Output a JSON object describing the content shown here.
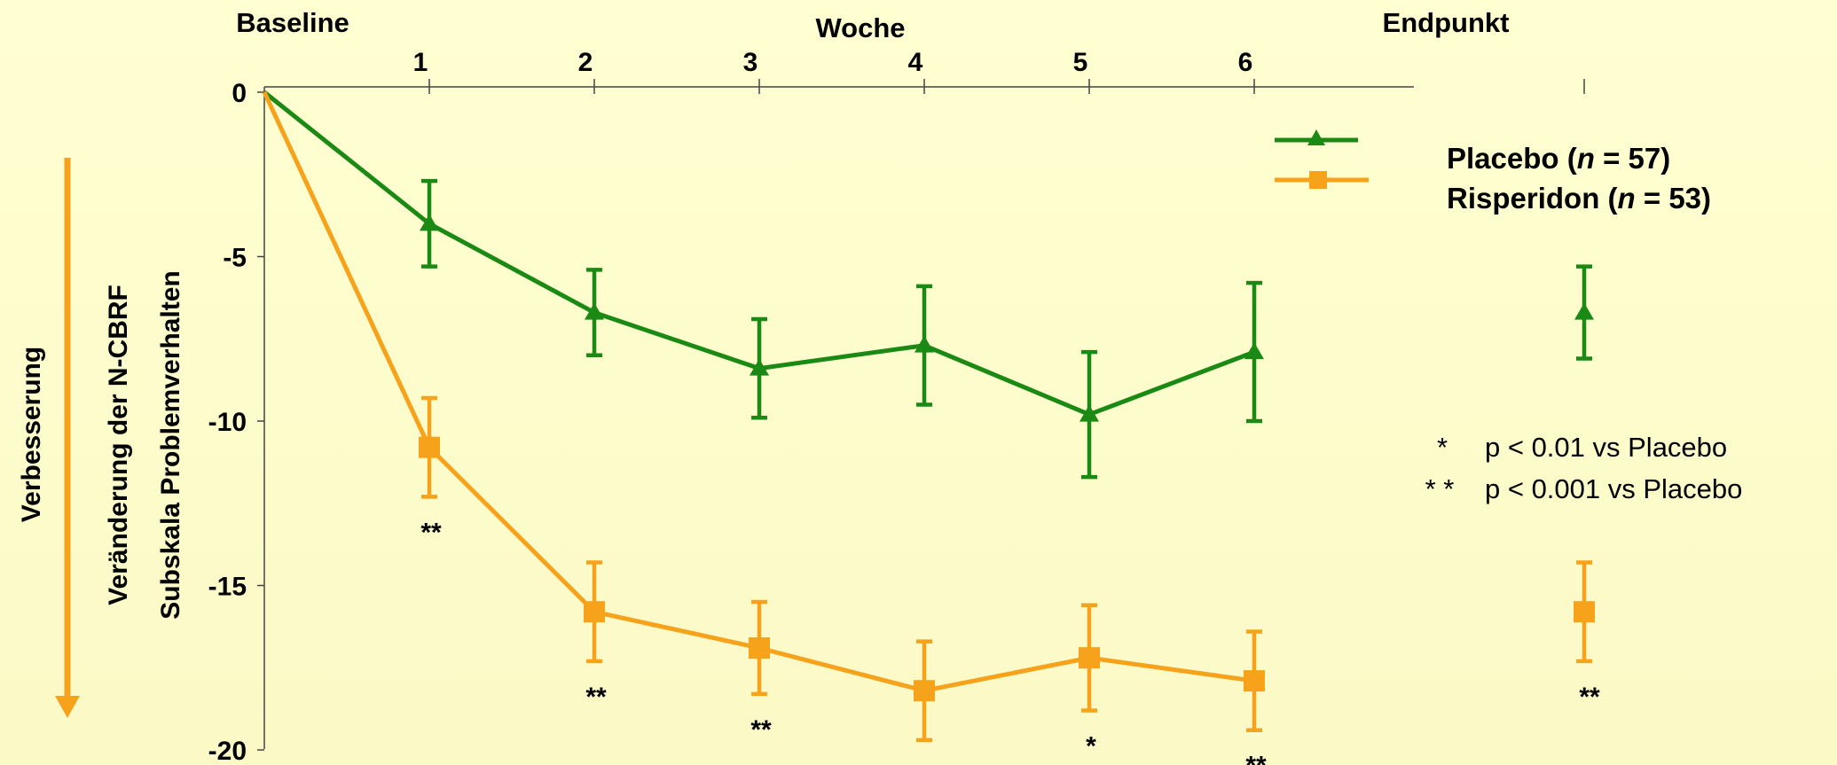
{
  "chart_data": {
    "type": "line",
    "top_axis": {
      "left_label": "Baseline",
      "title": "Woche",
      "right_label": "Endpunkt",
      "ticks": [
        "1",
        "2",
        "3",
        "4",
        "5",
        "6"
      ]
    },
    "y_axis": {
      "label_line1": "Veränderung der  N-CBRF",
      "label_line2": "Subskala Problemverhalten",
      "ticks": [
        "0",
        "-5",
        "-10",
        "-15",
        "-20"
      ],
      "ylim": [
        -20,
        0
      ]
    },
    "side_arrow_label": "Verbesserung",
    "x_values": [
      0,
      1,
      2,
      3,
      4,
      5,
      6
    ],
    "endpoint_x": 8,
    "series": [
      {
        "name": "Placebo",
        "n_label": "n",
        "n_value": "57",
        "color": "#1a8a14",
        "marker": "triangle",
        "values": [
          0,
          -4.0,
          -6.7,
          -8.4,
          -7.7,
          -9.8,
          -7.9
        ],
        "errors": [
          0,
          1.3,
          1.3,
          1.5,
          1.8,
          1.9,
          2.1
        ],
        "endpoint": -6.7,
        "endpoint_error": 1.4
      },
      {
        "name": "Risperidon",
        "n_label": "n",
        "n_value": "53",
        "color": "#f7a21b",
        "marker": "square",
        "values": [
          0,
          -10.8,
          -15.8,
          -16.9,
          -18.2,
          -17.2,
          -17.9
        ],
        "errors": [
          0,
          1.5,
          1.5,
          1.4,
          1.5,
          1.6,
          1.5
        ],
        "endpoint": -15.8,
        "endpoint_error": 1.5
      }
    ],
    "significance_marks": [
      "**",
      "**",
      "**",
      "**",
      "*",
      "**"
    ],
    "endpoint_significance": "**",
    "footnotes": [
      {
        "symbol": "*",
        "text": "p < 0.01 vs Placebo"
      },
      {
        "symbol": "* *",
        "text": "p < 0.001 vs Placebo"
      }
    ]
  }
}
